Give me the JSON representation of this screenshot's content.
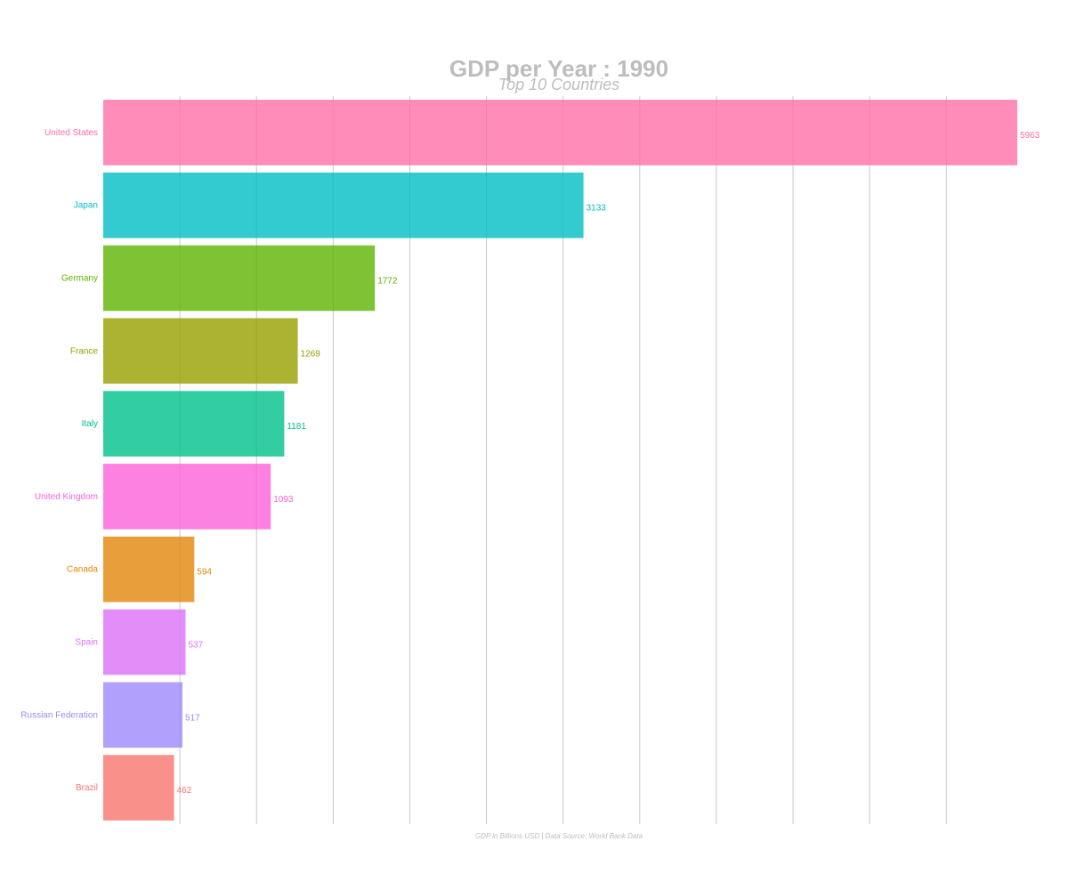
{
  "chart_data": {
    "type": "bar",
    "orientation": "horizontal",
    "title": "GDP per Year : 1990",
    "subtitle": "Top 10 Countries",
    "caption": "GDP in Billions USD | Data Source: World Bank Data",
    "xlabel": "",
    "ylabel": "",
    "xlim": [
      0,
      6000
    ],
    "grid": "vertical",
    "legend": "none",
    "categories": [
      "United States",
      "Japan",
      "Germany",
      "France",
      "Italy",
      "United Kingdom",
      "Canada",
      "Spain",
      "Russian Federation",
      "Brazil"
    ],
    "values": [
      5963,
      3133,
      1772,
      1269,
      1181,
      1093,
      594,
      537,
      517,
      462
    ],
    "colors": [
      "#ff6fa7",
      "#00bec4",
      "#5db400",
      "#97a000",
      "#00c08b",
      "#fc62d8",
      "#e2860a",
      "#dc70f8",
      "#9d88fb",
      "#f8766d"
    ]
  }
}
